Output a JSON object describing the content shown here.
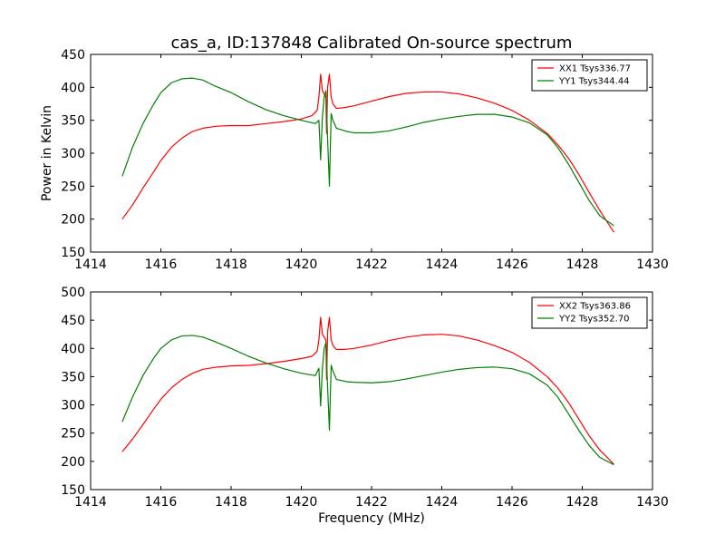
{
  "figure": {
    "title": "cas_a, ID:137848 Calibrated On-source spectrum"
  },
  "chart_data": [
    {
      "type": "line",
      "xlabel": "",
      "ylabel": "Power in Kelvin",
      "xlim": [
        1414,
        1430
      ],
      "ylim": [
        150,
        450
      ],
      "xticks": [
        "1414",
        "1416",
        "1418",
        "1420",
        "1422",
        "1424",
        "1426",
        "1428",
        "1430"
      ],
      "yticks": [
        "150",
        "200",
        "250",
        "300",
        "350",
        "400",
        "450"
      ],
      "legend": "top-right",
      "grid": false,
      "series": [
        {
          "name": "XX1 Tsys336.77",
          "color": "#ff0000",
          "x": [
            1414.9,
            1415.2,
            1415.5,
            1415.8,
            1416.0,
            1416.3,
            1416.6,
            1416.9,
            1417.2,
            1417.6,
            1418.0,
            1418.5,
            1419.0,
            1419.5,
            1420.0,
            1420.3,
            1420.45,
            1420.5,
            1420.55,
            1420.6,
            1420.65,
            1420.7,
            1420.72,
            1420.75,
            1420.8,
            1420.85,
            1420.9,
            1421.0,
            1421.2,
            1421.5,
            1422.0,
            1422.5,
            1423.0,
            1423.5,
            1424.0,
            1424.5,
            1425.0,
            1425.5,
            1426.0,
            1426.5,
            1427.0,
            1427.3,
            1427.6,
            1427.9,
            1428.2,
            1428.5,
            1428.9
          ],
          "y": [
            200,
            222,
            248,
            272,
            289,
            309,
            323,
            333,
            338,
            341,
            342,
            342,
            345,
            348,
            352,
            357,
            365,
            385,
            420,
            395,
            390,
            385,
            330,
            400,
            420,
            385,
            375,
            368,
            369,
            372,
            379,
            386,
            391,
            393,
            393,
            390,
            384,
            376,
            365,
            350,
            330,
            313,
            293,
            268,
            240,
            213,
            180
          ]
        },
        {
          "name": "YY1 Tsys344.44",
          "color": "#008000",
          "x": [
            1414.9,
            1415.2,
            1415.5,
            1415.8,
            1416.0,
            1416.3,
            1416.6,
            1416.9,
            1417.2,
            1417.5,
            1418.0,
            1418.5,
            1419.0,
            1419.5,
            1420.0,
            1420.4,
            1420.5,
            1420.55,
            1420.6,
            1420.65,
            1420.7,
            1420.75,
            1420.8,
            1420.85,
            1420.9,
            1421.0,
            1421.3,
            1421.5,
            1422.0,
            1422.5,
            1423.0,
            1423.5,
            1424.0,
            1424.5,
            1425.0,
            1425.5,
            1426.0,
            1426.5,
            1427.0,
            1427.3,
            1427.6,
            1427.9,
            1428.2,
            1428.5,
            1428.9
          ],
          "y": [
            265,
            310,
            346,
            375,
            392,
            407,
            413,
            414,
            411,
            403,
            392,
            378,
            366,
            357,
            350,
            345,
            350,
            290,
            355,
            385,
            395,
            320,
            250,
            360,
            350,
            338,
            333,
            331,
            331,
            334,
            340,
            347,
            352,
            356,
            359,
            359,
            355,
            346,
            328,
            309,
            284,
            256,
            228,
            205,
            190
          ]
        }
      ]
    },
    {
      "type": "line",
      "xlabel": "Frequency (MHz)",
      "ylabel": "",
      "xlim": [
        1414,
        1430
      ],
      "ylim": [
        150,
        500
      ],
      "xticks": [
        "1414",
        "1416",
        "1418",
        "1420",
        "1422",
        "1424",
        "1426",
        "1428",
        "1430"
      ],
      "yticks": [
        "150",
        "200",
        "250",
        "300",
        "350",
        "400",
        "450",
        "500"
      ],
      "legend": "top-right",
      "grid": false,
      "series": [
        {
          "name": "XX2 Tsys363.86",
          "color": "#ff0000",
          "x": [
            1414.9,
            1415.2,
            1415.5,
            1415.8,
            1416.0,
            1416.3,
            1416.6,
            1416.9,
            1417.2,
            1417.6,
            1418.0,
            1418.5,
            1419.0,
            1419.5,
            1420.0,
            1420.3,
            1420.45,
            1420.5,
            1420.55,
            1420.6,
            1420.65,
            1420.7,
            1420.72,
            1420.75,
            1420.8,
            1420.85,
            1420.9,
            1421.0,
            1421.2,
            1421.5,
            1422.0,
            1422.5,
            1423.0,
            1423.5,
            1424.0,
            1424.5,
            1425.0,
            1425.5,
            1426.0,
            1426.5,
            1427.0,
            1427.3,
            1427.6,
            1427.9,
            1428.2,
            1428.5,
            1428.9
          ],
          "y": [
            217,
            240,
            266,
            293,
            310,
            330,
            345,
            356,
            363,
            367,
            369,
            370,
            373,
            377,
            382,
            386,
            395,
            415,
            455,
            425,
            420,
            415,
            345,
            430,
            455,
            415,
            405,
            398,
            398,
            400,
            406,
            414,
            420,
            424,
            425,
            422,
            415,
            405,
            393,
            375,
            350,
            330,
            305,
            275,
            245,
            220,
            195
          ]
        },
        {
          "name": "YY2 Tsys352.70",
          "color": "#008000",
          "x": [
            1414.9,
            1415.2,
            1415.5,
            1415.8,
            1416.0,
            1416.3,
            1416.6,
            1416.9,
            1417.2,
            1417.5,
            1418.0,
            1418.5,
            1419.0,
            1419.5,
            1420.0,
            1420.4,
            1420.5,
            1420.55,
            1420.6,
            1420.65,
            1420.7,
            1420.75,
            1420.8,
            1420.85,
            1420.9,
            1421.0,
            1421.3,
            1421.5,
            1422.0,
            1422.5,
            1423.0,
            1423.5,
            1424.0,
            1424.5,
            1425.0,
            1425.5,
            1426.0,
            1426.5,
            1427.0,
            1427.3,
            1427.6,
            1427.9,
            1428.2,
            1428.5,
            1428.9
          ],
          "y": [
            270,
            315,
            353,
            383,
            400,
            415,
            422,
            423,
            420,
            413,
            400,
            386,
            374,
            364,
            356,
            352,
            365,
            298,
            365,
            400,
            410,
            330,
            255,
            370,
            360,
            345,
            341,
            340,
            339,
            341,
            346,
            352,
            358,
            363,
            366,
            367,
            364,
            355,
            335,
            314,
            285,
            255,
            228,
            207,
            194
          ]
        }
      ]
    }
  ]
}
